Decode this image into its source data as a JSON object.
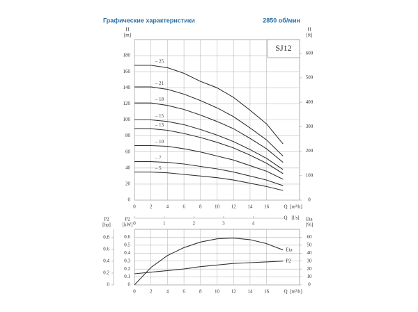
{
  "header": {
    "title": "Графические характеристики",
    "speed": "2850 об/мин"
  },
  "chart_data": [
    {
      "type": "line",
      "model": "SJ12",
      "xlabel": "Q",
      "xunit": "[m³/h]",
      "xlim": [
        0,
        20
      ],
      "xticks": [
        0,
        2,
        4,
        6,
        8,
        10,
        12,
        14,
        16
      ],
      "x2label": "Q",
      "x2unit": "[l/s]",
      "x2lim": [
        0,
        5.56
      ],
      "x2ticks": [
        0,
        1,
        2,
        3,
        4
      ],
      "ylabel": "H",
      "yunit": "[m]",
      "ylim": [
        0,
        200
      ],
      "yticks": [
        0,
        20,
        40,
        60,
        80,
        100,
        120,
        140,
        160,
        180
      ],
      "y2label": "H",
      "y2unit": "[ft]",
      "y2lim": [
        0,
        656
      ],
      "y2ticks": [
        0,
        100,
        200,
        300,
        400,
        500,
        600
      ],
      "grid": true,
      "x": [
        0,
        2,
        4,
        6,
        8,
        10,
        12,
        14,
        16,
        18
      ],
      "series": [
        {
          "name": "– 25",
          "color": "#333333",
          "values": [
            168,
            168,
            165,
            158,
            148,
            140,
            128,
            112,
            95,
            70
          ]
        },
        {
          "name": "– 21",
          "color": "#333333",
          "values": [
            141,
            141,
            138,
            132,
            124,
            115,
            104,
            90,
            75,
            55
          ]
        },
        {
          "name": "– 18",
          "color": "#333333",
          "values": [
            121,
            121,
            118,
            113,
            106,
            98,
            89,
            77,
            64,
            47
          ]
        },
        {
          "name": "– 15",
          "color": "#333333",
          "values": [
            100,
            100,
            98,
            94,
            88,
            81,
            73,
            63,
            52,
            38
          ]
        },
        {
          "name": "– 13",
          "color": "#333333",
          "values": [
            89,
            89,
            87,
            83,
            78,
            72,
            65,
            56,
            46,
            33
          ]
        },
        {
          "name": "– 10",
          "color": "#333333",
          "values": [
            68,
            68,
            67,
            64,
            60,
            55,
            50,
            43,
            36,
            26
          ]
        },
        {
          "name": "– 7",
          "color": "#333333",
          "values": [
            48,
            48,
            47,
            45,
            42,
            39,
            35,
            30,
            25,
            18
          ]
        },
        {
          "name": "– 5",
          "color": "#333333",
          "values": [
            35,
            35,
            34,
            32,
            30,
            28,
            25,
            21,
            17,
            12
          ]
        }
      ]
    },
    {
      "type": "line",
      "xlabel": "Q",
      "xunit": "[m³/h]",
      "xlim": [
        0,
        20
      ],
      "xticks": [
        0,
        2,
        4,
        6,
        8,
        10,
        12,
        14,
        16
      ],
      "ylabel": "P2",
      "yunit": "[kW]",
      "ylim": [
        0,
        0.7
      ],
      "yticks": [
        0,
        0.1,
        0.2,
        0.3,
        0.4,
        0.5,
        0.6
      ],
      "y3label": "P2",
      "y3unit": "[hp]",
      "y3lim": [
        0,
        0.94
      ],
      "y3ticks": [
        0,
        0.2,
        0.4,
        0.6,
        0.8
      ],
      "y2label": "Eta",
      "y2unit": "[%]",
      "y2lim": [
        0,
        70
      ],
      "y2ticks": [
        0,
        10,
        20,
        30,
        40,
        50,
        60
      ],
      "grid": true,
      "x": [
        0,
        2,
        4,
        6,
        8,
        10,
        12,
        14,
        16,
        18
      ],
      "series": [
        {
          "name": "Eta",
          "color": "#333333",
          "axis": "y2",
          "values": [
            0,
            22,
            37,
            47,
            54,
            58,
            59,
            57,
            52,
            44
          ]
        },
        {
          "name": "P2",
          "color": "#333333",
          "values": [
            0.14,
            0.16,
            0.18,
            0.2,
            0.23,
            0.25,
            0.27,
            0.28,
            0.29,
            0.3
          ]
        }
      ]
    }
  ]
}
